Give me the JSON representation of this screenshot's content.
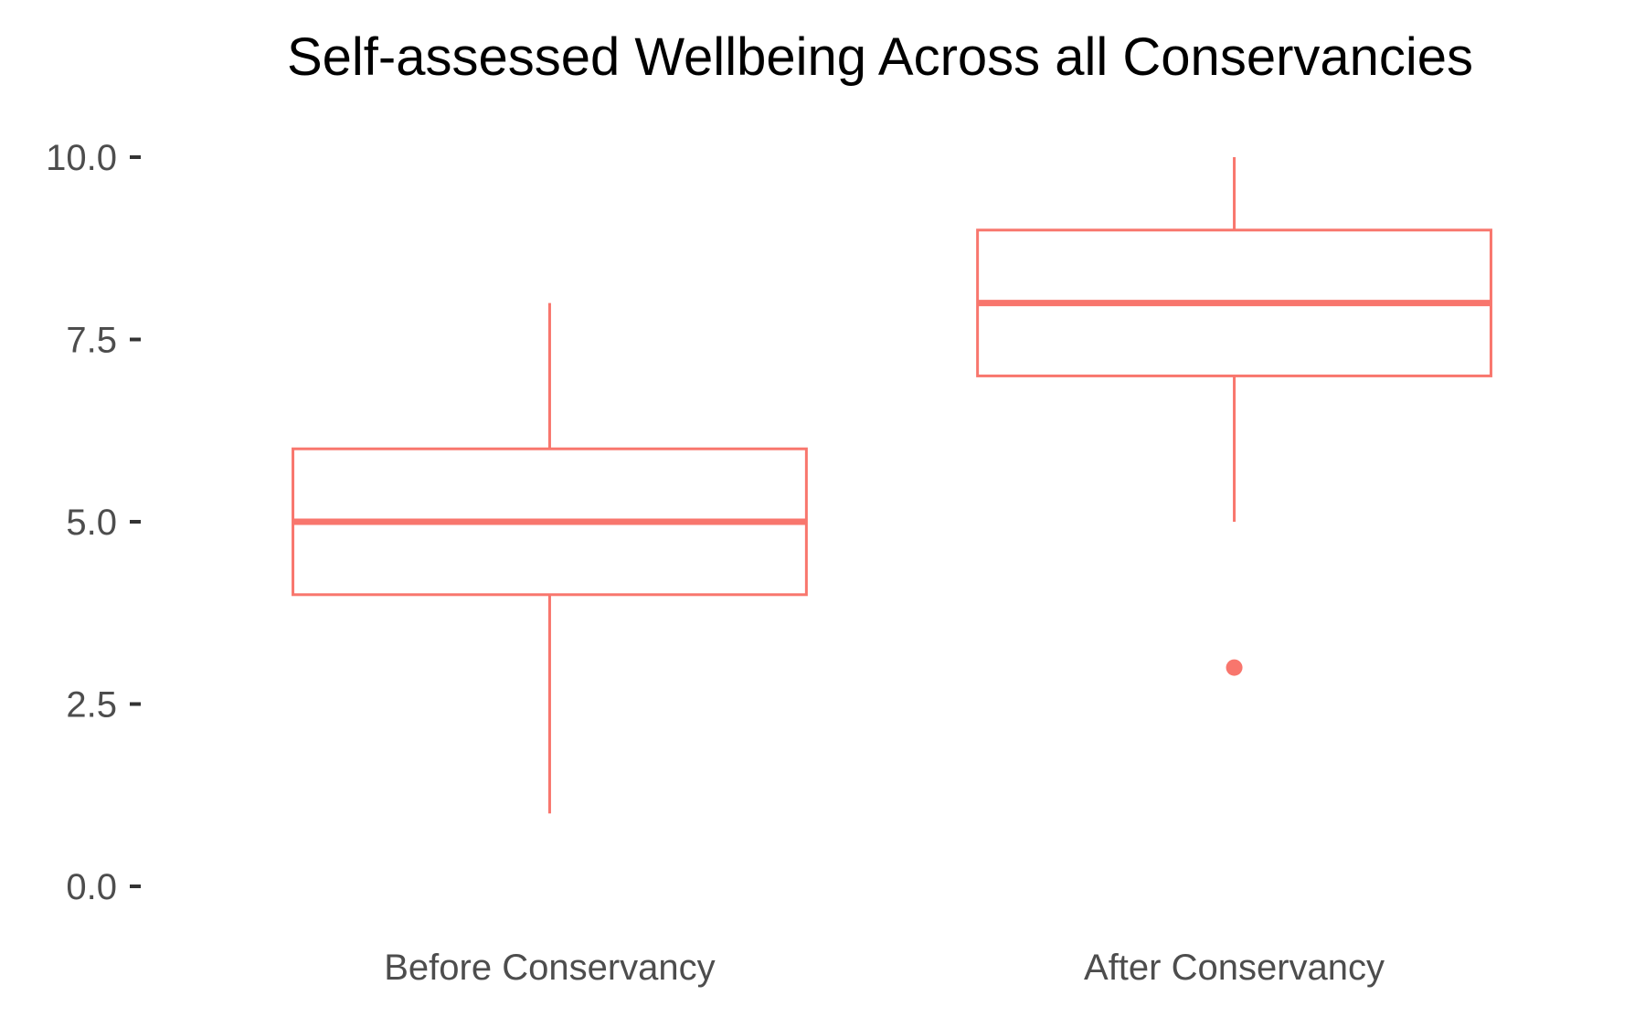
{
  "chart_data": {
    "type": "boxplot",
    "title": "Self-assessed Wellbeing Across all Conservancies",
    "xlabel": "",
    "ylabel": "",
    "ylim": [
      0,
      10
    ],
    "y_ticks": [
      "0.0",
      "2.5",
      "5.0",
      "7.5",
      "10.0"
    ],
    "y_tick_values": [
      0,
      2.5,
      5,
      7.5,
      10
    ],
    "grid": false,
    "legend": "none",
    "color": "#F8766D",
    "categories": [
      "Before Conservancy",
      "After Conservancy"
    ],
    "boxes": [
      {
        "category": "Before Conservancy",
        "whisker_low": 1,
        "q1": 4,
        "median": 5,
        "q3": 6,
        "whisker_high": 8,
        "outliers": []
      },
      {
        "category": "After Conservancy",
        "whisker_low": 5,
        "q1": 7,
        "median": 8,
        "q3": 9,
        "whisker_high": 10,
        "outliers": [
          3
        ]
      }
    ]
  }
}
